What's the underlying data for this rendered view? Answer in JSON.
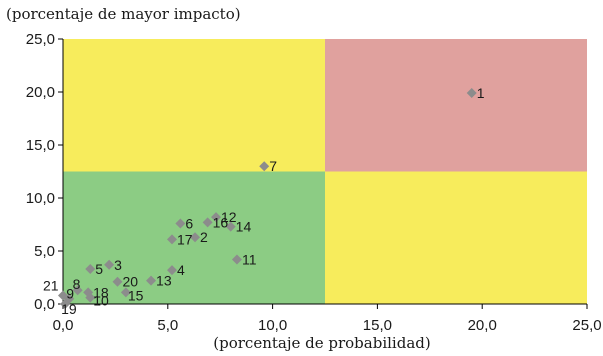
{
  "chart_data": {
    "type": "scatter",
    "ylabel": "(porcentaje de mayor impacto)",
    "xlabel": "(porcentaje de probabilidad)",
    "xlim": [
      0,
      25
    ],
    "ylim": [
      0,
      25
    ],
    "x_ticks": [
      "0,0",
      "5,0",
      "10,0",
      "15,0",
      "20,0",
      "25,0"
    ],
    "y_ticks": [
      "0,0",
      "5,0",
      "10,0",
      "15,0",
      "20,0",
      "25,0"
    ],
    "grid": false,
    "quadrant_split": {
      "x": 12.5,
      "y": 12.5
    },
    "colors": {
      "low_low": "#8ccc84",
      "high_high": "#e0a19e",
      "mixed": "#f7ec5c",
      "marker": "#8c8c8c"
    },
    "points": [
      {
        "label": "1",
        "x": 19.5,
        "y": 19.9
      },
      {
        "label": "2",
        "x": 6.3,
        "y": 6.3
      },
      {
        "label": "3",
        "x": 2.2,
        "y": 3.7
      },
      {
        "label": "4",
        "x": 5.2,
        "y": 3.2
      },
      {
        "label": "5",
        "x": 1.3,
        "y": 3.3
      },
      {
        "label": "6",
        "x": 5.6,
        "y": 7.6
      },
      {
        "label": "7",
        "x": 9.6,
        "y": 13.0
      },
      {
        "label": "8",
        "x": 0.7,
        "y": 1.3
      },
      {
        "label": "9",
        "x": 0.3,
        "y": 0.5
      },
      {
        "label": "10",
        "x": 1.3,
        "y": 0.6
      },
      {
        "label": "11",
        "x": 8.3,
        "y": 4.2
      },
      {
        "label": "12",
        "x": 7.3,
        "y": 8.2
      },
      {
        "label": "13",
        "x": 4.2,
        "y": 2.2
      },
      {
        "label": "14",
        "x": 8.0,
        "y": 7.3
      },
      {
        "label": "15",
        "x": 3.0,
        "y": 1.1
      },
      {
        "label": "16",
        "x": 6.9,
        "y": 7.7
      },
      {
        "label": "17",
        "x": 5.2,
        "y": 6.1
      },
      {
        "label": "18",
        "x": 1.2,
        "y": 1.1
      },
      {
        "label": "19",
        "x": 0.1,
        "y": 0.0
      },
      {
        "label": "20",
        "x": 2.6,
        "y": 2.1
      },
      {
        "label": "21",
        "x": 0.0,
        "y": 0.8
      }
    ]
  }
}
